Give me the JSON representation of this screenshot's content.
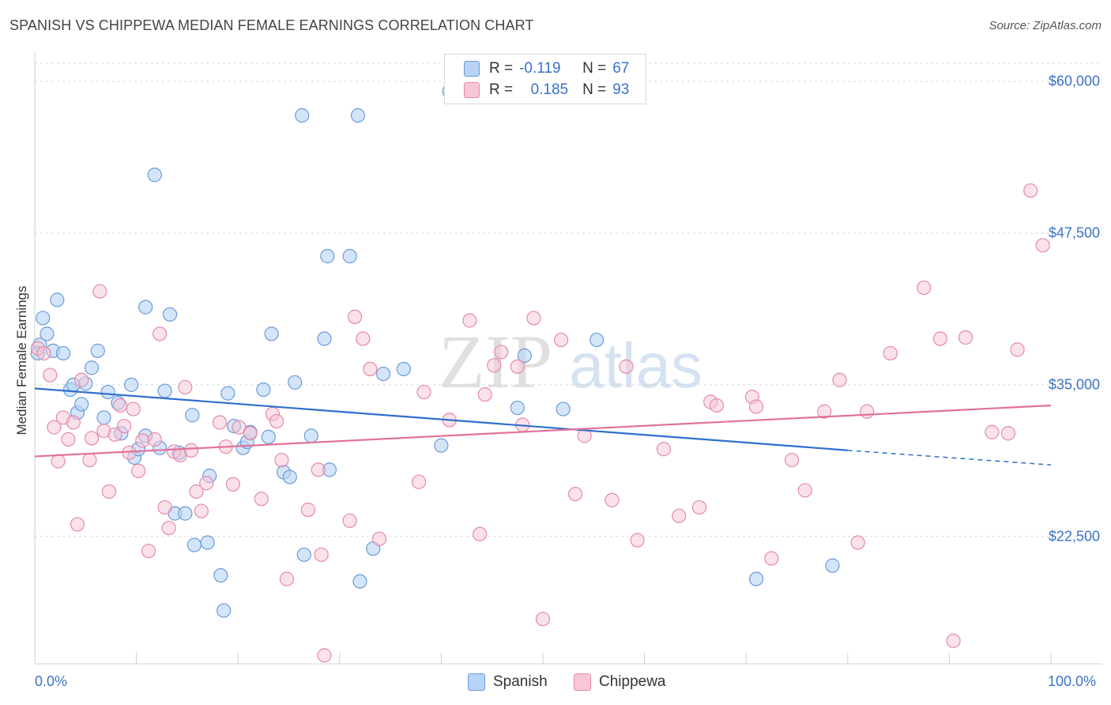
{
  "title": "SPANISH VS CHIPPEWA MEDIAN FEMALE EARNINGS CORRELATION CHART",
  "source": "Source: ZipAtlas.com",
  "watermark": {
    "zip": "ZIP",
    "atlas": "atlas"
  },
  "colors": {
    "spanish_fill": "#b8d3f5",
    "spanish_stroke": "#6b9bd8",
    "spanish_line": "#2f6fcd",
    "chippewa_fill": "#f8c6d6",
    "chippewa_stroke": "#e48aa9",
    "chippewa_line": "#e2709a",
    "axis_text": "#3b72c9",
    "grid": "#d8d8d8"
  },
  "legend": {
    "rows": [
      {
        "series": "spanish",
        "r_label": "R =",
        "r_value": "-0.119",
        "n_label": "N =",
        "n_value": "67"
      },
      {
        "series": "chippewa",
        "r_label": "R =",
        "r_value": "0.185",
        "n_label": "N =",
        "n_value": "93"
      }
    ]
  },
  "bottom_legend": [
    {
      "series": "spanish",
      "label": "Spanish"
    },
    {
      "series": "chippewa",
      "label": "Chippewa"
    }
  ],
  "chart_data": {
    "type": "scatter",
    "title": "SPANISH VS CHIPPEWA MEDIAN FEMALE EARNINGS CORRELATION CHART",
    "xlabel": "",
    "ylabel": "Median Female Earnings",
    "xlim": [
      0,
      100
    ],
    "ylim": [
      12000,
      61500
    ],
    "x_tick_labels": [
      "0.0%",
      "100.0%"
    ],
    "y_ticks": [
      {
        "value": 22500,
        "label": "$22,500"
      },
      {
        "value": 35000,
        "label": "$35,000"
      },
      {
        "value": 47500,
        "label": "$47,500"
      },
      {
        "value": 60000,
        "label": "$60,000"
      }
    ],
    "grid": true,
    "series": [
      {
        "name": "Spanish",
        "r": -0.119,
        "n": 67,
        "trend": {
          "x_start": 0,
          "y_start": 34700,
          "x_solid_end": 80,
          "y_solid_end": 29600,
          "x_end": 100,
          "y_end": 28400
        },
        "points": [
          [
            0.5,
            38300
          ],
          [
            0.8,
            40500
          ],
          [
            1.2,
            39200
          ],
          [
            1.8,
            37800
          ],
          [
            2.2,
            42000
          ],
          [
            2.8,
            37600
          ],
          [
            3.5,
            34600
          ],
          [
            3.8,
            35000
          ],
          [
            4.2,
            32700
          ],
          [
            4.6,
            33400
          ],
          [
            5.0,
            35100
          ],
          [
            5.6,
            36400
          ],
          [
            6.2,
            37800
          ],
          [
            6.8,
            32300
          ],
          [
            7.2,
            34400
          ],
          [
            8.2,
            33500
          ],
          [
            8.5,
            31000
          ],
          [
            9.5,
            35000
          ],
          [
            9.8,
            29000
          ],
          [
            10.2,
            29700
          ],
          [
            10.9,
            30800
          ],
          [
            10.9,
            41400
          ],
          [
            11.8,
            52300
          ],
          [
            12.3,
            29800
          ],
          [
            12.8,
            34500
          ],
          [
            13.3,
            40800
          ],
          [
            13.8,
            24400
          ],
          [
            14.2,
            29400
          ],
          [
            14.8,
            24400
          ],
          [
            15.5,
            32500
          ],
          [
            15.7,
            21800
          ],
          [
            17.0,
            22000
          ],
          [
            17.2,
            27500
          ],
          [
            18.3,
            19300
          ],
          [
            18.6,
            16400
          ],
          [
            19.0,
            34300
          ],
          [
            19.6,
            31600
          ],
          [
            20.5,
            29800
          ],
          [
            20.9,
            30300
          ],
          [
            21.2,
            31100
          ],
          [
            22.5,
            34600
          ],
          [
            23.0,
            30700
          ],
          [
            23.3,
            39200
          ],
          [
            24.5,
            27800
          ],
          [
            25.1,
            27400
          ],
          [
            25.6,
            35200
          ],
          [
            26.3,
            57200
          ],
          [
            27.2,
            30800
          ],
          [
            26.5,
            21000
          ],
          [
            28.5,
            38800
          ],
          [
            28.8,
            45600
          ],
          [
            29.0,
            28000
          ],
          [
            31.0,
            45600
          ],
          [
            31.8,
            57200
          ],
          [
            32.0,
            18800
          ],
          [
            33.3,
            21500
          ],
          [
            34.3,
            35900
          ],
          [
            36.3,
            36300
          ],
          [
            40.0,
            30000
          ],
          [
            40.8,
            59200
          ],
          [
            47.5,
            33100
          ],
          [
            48.2,
            37400
          ],
          [
            52.0,
            33000
          ],
          [
            55.3,
            38700
          ],
          [
            71.0,
            19000
          ],
          [
            78.5,
            20100
          ],
          [
            0.3,
            37600
          ]
        ]
      },
      {
        "name": "Chippewa",
        "r": 0.185,
        "n": 93,
        "trend": {
          "x_start": 0,
          "y_start": 29100,
          "x_end": 100,
          "y_end": 33300
        },
        "points": [
          [
            0.3,
            38000
          ],
          [
            0.9,
            37600
          ],
          [
            1.5,
            35800
          ],
          [
            1.9,
            31500
          ],
          [
            2.3,
            28700
          ],
          [
            2.8,
            32300
          ],
          [
            3.3,
            30500
          ],
          [
            3.8,
            31900
          ],
          [
            4.2,
            23500
          ],
          [
            4.6,
            35400
          ],
          [
            5.4,
            28800
          ],
          [
            5.6,
            30600
          ],
          [
            6.4,
            42700
          ],
          [
            6.8,
            31200
          ],
          [
            7.3,
            26200
          ],
          [
            7.9,
            30900
          ],
          [
            8.4,
            33300
          ],
          [
            8.8,
            31600
          ],
          [
            9.3,
            29400
          ],
          [
            9.7,
            33000
          ],
          [
            10.2,
            27900
          ],
          [
            10.6,
            30400
          ],
          [
            11.2,
            21300
          ],
          [
            11.8,
            30500
          ],
          [
            12.3,
            39200
          ],
          [
            12.8,
            24900
          ],
          [
            13.2,
            23200
          ],
          [
            13.7,
            29500
          ],
          [
            14.3,
            29200
          ],
          [
            14.8,
            34800
          ],
          [
            15.4,
            29600
          ],
          [
            15.9,
            26200
          ],
          [
            16.4,
            24600
          ],
          [
            16.9,
            26900
          ],
          [
            18.2,
            31900
          ],
          [
            18.8,
            29900
          ],
          [
            19.5,
            26800
          ],
          [
            20.1,
            31500
          ],
          [
            21.2,
            31000
          ],
          [
            22.3,
            25600
          ],
          [
            23.4,
            32600
          ],
          [
            23.8,
            32000
          ],
          [
            24.3,
            28800
          ],
          [
            24.8,
            19000
          ],
          [
            26.9,
            24700
          ],
          [
            27.9,
            28000
          ],
          [
            28.2,
            21000
          ],
          [
            28.5,
            12700
          ],
          [
            31.0,
            23800
          ],
          [
            31.5,
            40600
          ],
          [
            32.3,
            38800
          ],
          [
            33.0,
            36300
          ],
          [
            33.9,
            22300
          ],
          [
            37.8,
            27000
          ],
          [
            38.3,
            34400
          ],
          [
            40.8,
            32100
          ],
          [
            42.8,
            40300
          ],
          [
            43.8,
            22700
          ],
          [
            44.3,
            34200
          ],
          [
            45.2,
            36600
          ],
          [
            45.9,
            37700
          ],
          [
            47.5,
            36500
          ],
          [
            48.0,
            31700
          ],
          [
            49.1,
            40500
          ],
          [
            50.0,
            15700
          ],
          [
            51.8,
            38700
          ],
          [
            53.2,
            26000
          ],
          [
            54.1,
            30800
          ],
          [
            56.8,
            25500
          ],
          [
            58.2,
            36500
          ],
          [
            59.3,
            22200
          ],
          [
            61.9,
            29700
          ],
          [
            63.4,
            24200
          ],
          [
            65.4,
            24900
          ],
          [
            66.5,
            33600
          ],
          [
            67.1,
            33300
          ],
          [
            70.6,
            34000
          ],
          [
            71.0,
            33200
          ],
          [
            72.5,
            20700
          ],
          [
            74.5,
            28800
          ],
          [
            75.8,
            26300
          ],
          [
            77.7,
            32800
          ],
          [
            79.2,
            35400
          ],
          [
            81.0,
            22000
          ],
          [
            81.9,
            32800
          ],
          [
            84.2,
            37600
          ],
          [
            87.5,
            43000
          ],
          [
            89.1,
            38800
          ],
          [
            90.4,
            13900
          ],
          [
            91.6,
            38900
          ],
          [
            94.2,
            31100
          ],
          [
            95.8,
            31000
          ],
          [
            96.7,
            37900
          ],
          [
            98.0,
            51000
          ],
          [
            99.2,
            46500
          ]
        ]
      }
    ]
  }
}
